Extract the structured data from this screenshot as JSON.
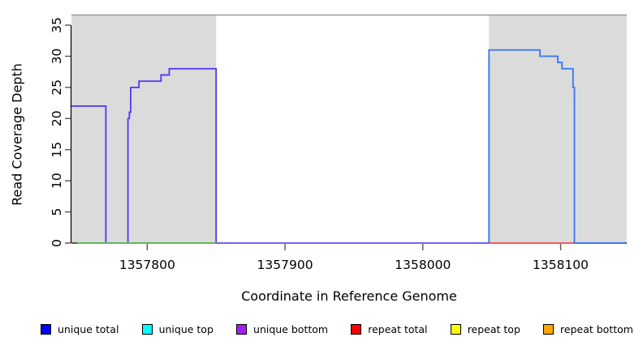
{
  "chart_data": {
    "type": "line",
    "title": "",
    "xlabel": "Coordinate in Reference Genome",
    "ylabel": "Read Coverage Depth",
    "xlim": [
      1357745,
      1358148
    ],
    "ylim": [
      0,
      35
    ],
    "grid": false,
    "legend_position": "bottom",
    "x_ticks": [
      1357800,
      1357900,
      1358000,
      1358100
    ],
    "x_tick_labels": [
      "1357800",
      "1357900",
      "1358000",
      "1358100"
    ],
    "y_ticks": [
      0,
      5,
      10,
      15,
      20,
      25,
      30,
      35
    ],
    "y_tick_labels": [
      "0",
      "5",
      "10",
      "15",
      "20",
      "25",
      "30",
      "35"
    ],
    "shaded_regions": [
      {
        "name": "left-unique-block",
        "x0": 1357745,
        "x1": 1357850,
        "color": "#dbdbdb"
      },
      {
        "name": "right-unique-block",
        "x0": 1358048,
        "x1": 1358148,
        "color": "#dbdbdb"
      }
    ],
    "top_border_color": "#9a9a9a",
    "axis_color": "#000000",
    "tick_color": "#555555",
    "series": [
      {
        "name": "left-coverage-trace",
        "color": "#5b3cee",
        "points": [
          [
            1357745,
            22
          ],
          [
            1357770,
            22
          ],
          [
            1357770,
            0
          ],
          [
            1357786,
            0
          ],
          [
            1357786,
            20
          ],
          [
            1357787,
            20
          ],
          [
            1357787,
            21
          ],
          [
            1357788,
            21
          ],
          [
            1357788,
            25
          ],
          [
            1357794,
            25
          ],
          [
            1357794,
            26
          ],
          [
            1357810,
            26
          ],
          [
            1357810,
            27
          ],
          [
            1357816,
            27
          ],
          [
            1357816,
            28
          ],
          [
            1357850,
            28
          ],
          [
            1357850,
            0
          ]
        ]
      },
      {
        "name": "middle-zero-line",
        "color": "#7a5ff0",
        "points": [
          [
            1357850,
            0
          ],
          [
            1358048,
            0
          ]
        ]
      },
      {
        "name": "left-zero-line-green",
        "color": "#5fb762",
        "points": [
          [
            1357749,
            0
          ],
          [
            1357850,
            0
          ]
        ]
      },
      {
        "name": "right-zero-line-red",
        "color": "#ef5d5d",
        "points": [
          [
            1358048,
            0
          ],
          [
            1358140,
            0
          ]
        ]
      },
      {
        "name": "right-coverage-trace",
        "color": "#3d7bf0",
        "points": [
          [
            1358048,
            0
          ],
          [
            1358048,
            31
          ],
          [
            1358085,
            31
          ],
          [
            1358085,
            30
          ],
          [
            1358098,
            30
          ],
          [
            1358098,
            29
          ],
          [
            1358101,
            29
          ],
          [
            1358101,
            28
          ],
          [
            1358109,
            28
          ],
          [
            1358109,
            25
          ],
          [
            1358110,
            25
          ],
          [
            1358110,
            0
          ],
          [
            1358147,
            0
          ]
        ]
      }
    ],
    "legend": [
      {
        "label": "unique total",
        "color": "#0000ff"
      },
      {
        "label": "unique top",
        "color": "#00ffff"
      },
      {
        "label": "unique bottom",
        "color": "#a020f0"
      },
      {
        "label": "repeat total",
        "color": "#ff0000"
      },
      {
        "label": "repeat top",
        "color": "#ffff00"
      },
      {
        "label": "repeat bottom",
        "color": "#ffa500"
      }
    ]
  }
}
